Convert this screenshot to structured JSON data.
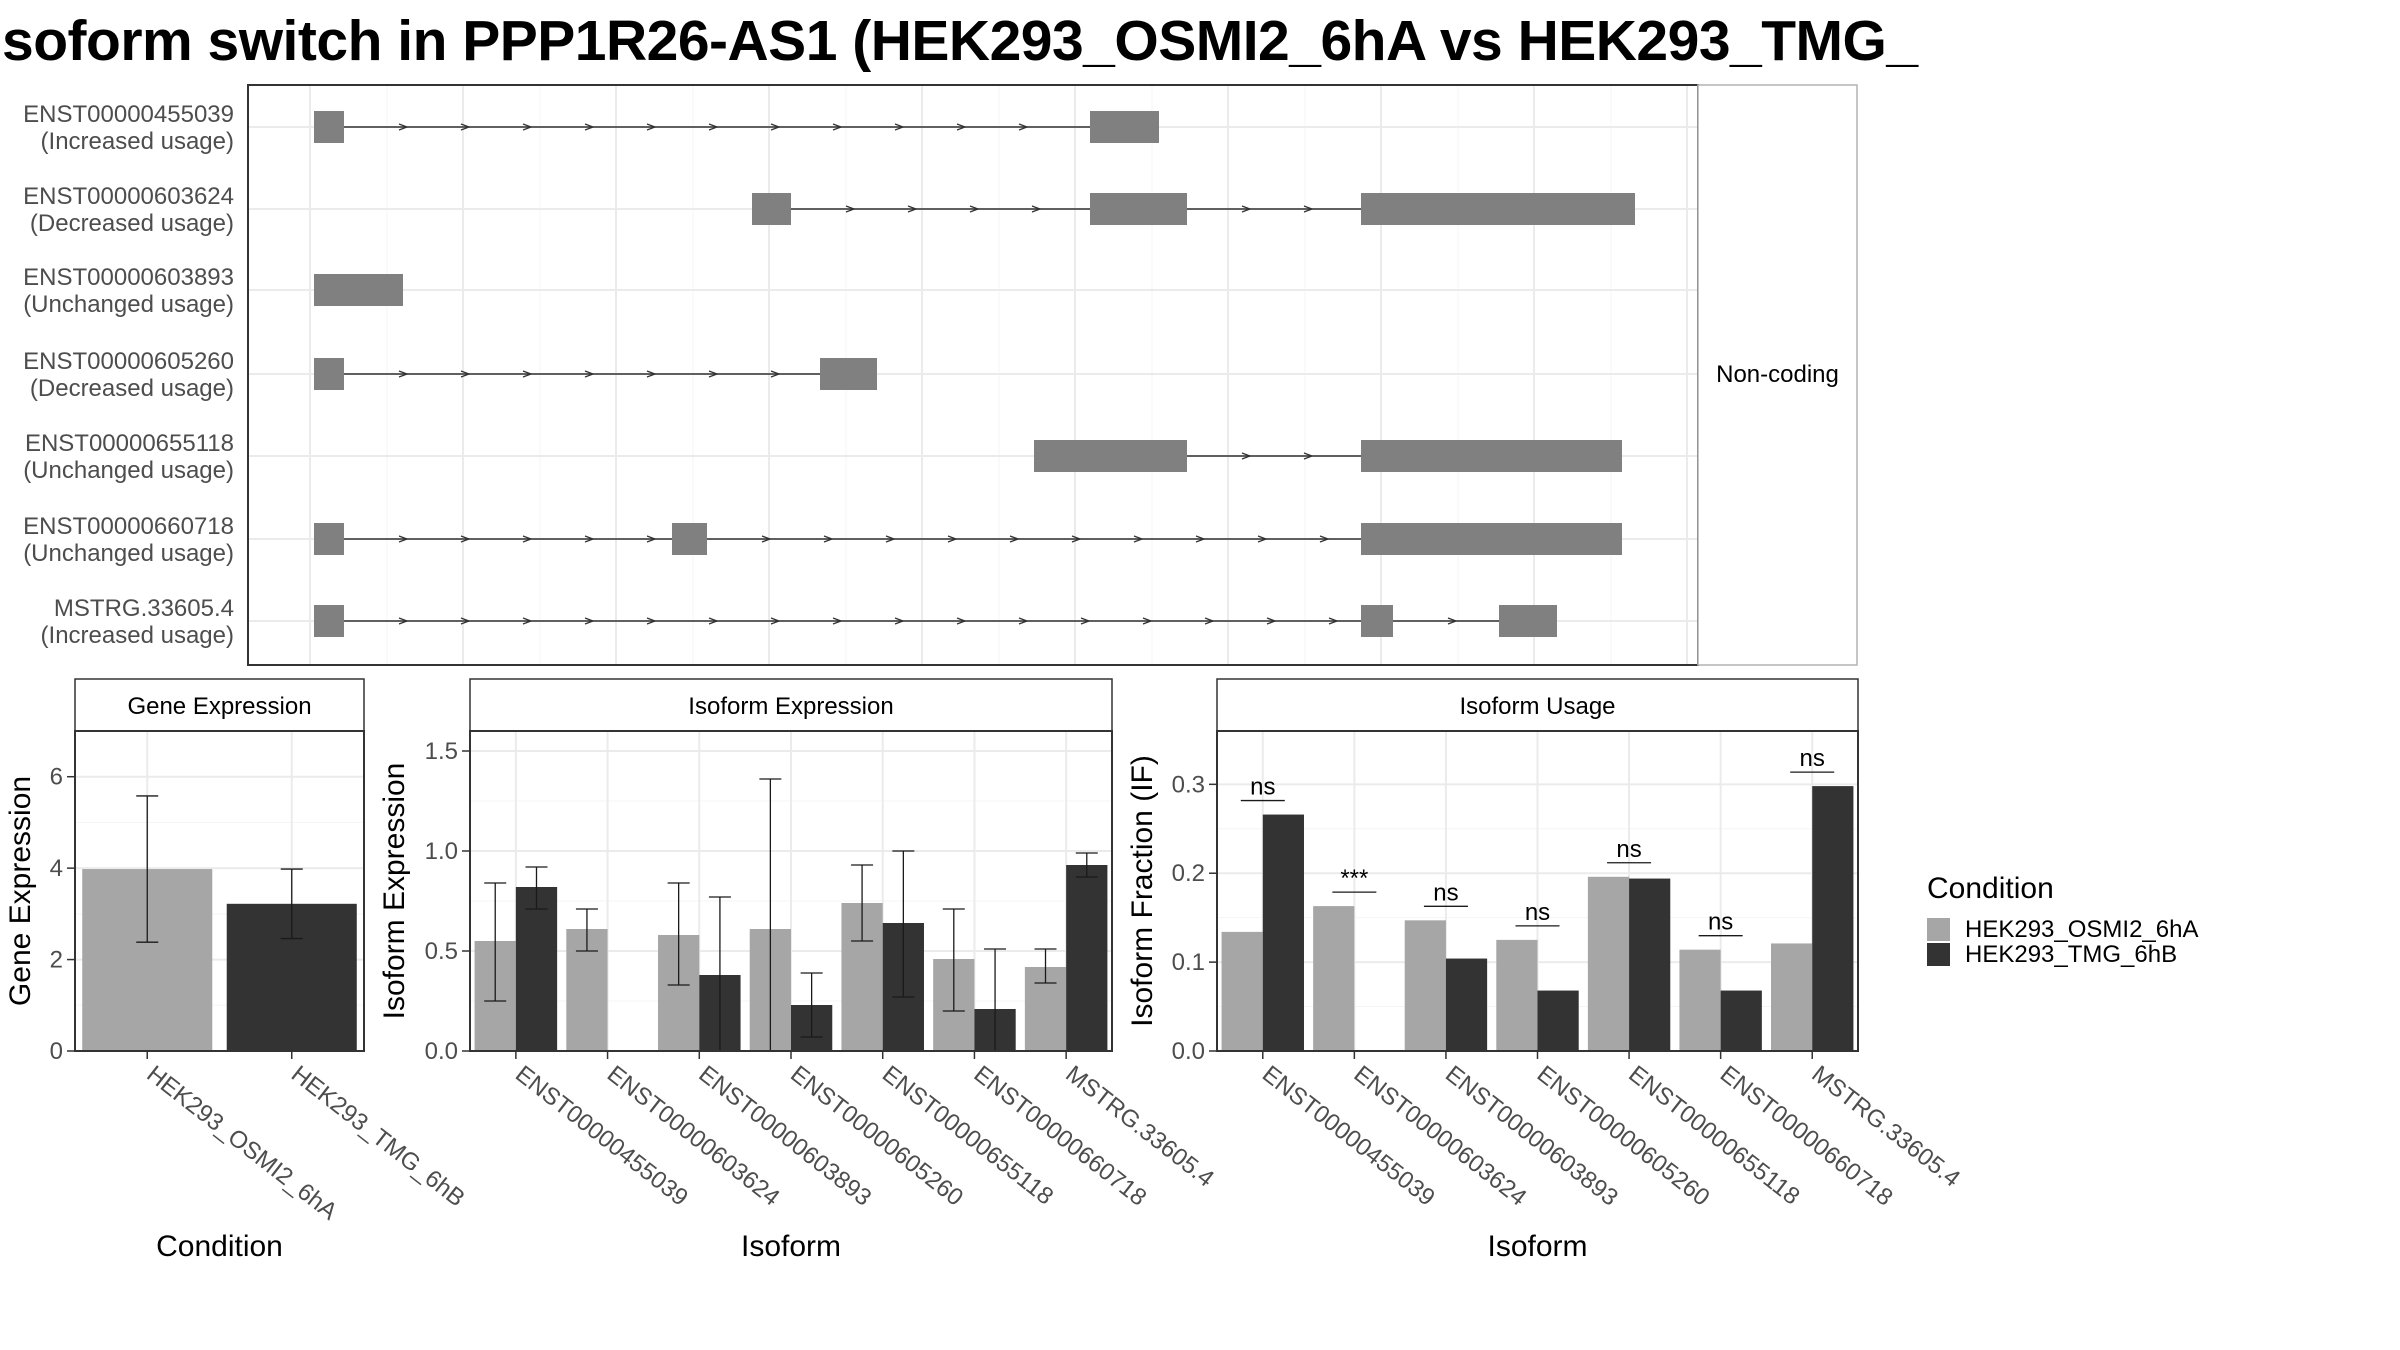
{
  "title": "soform switch in PPP1R26-AS1 (HEK293_OSMI2_6hA vs HEK293_TMG_",
  "colors": {
    "light": "#a6a6a6",
    "dark": "#333333",
    "exon": "#808080",
    "grid": "#ebebeb",
    "border": "#333333",
    "strip": "#d9d9d9"
  },
  "structure": {
    "strip_label": "Non-coding",
    "transcripts": [
      {
        "id": "ENST00000455039",
        "usage": "(Increased usage)"
      },
      {
        "id": "ENST00000603624",
        "usage": "(Decreased usage)"
      },
      {
        "id": "ENST00000603893",
        "usage": "(Unchanged usage)"
      },
      {
        "id": "ENST00000605260",
        "usage": "(Decreased usage)"
      },
      {
        "id": "ENST00000655118",
        "usage": "(Unchanged usage)"
      },
      {
        "id": "ENST00000660718",
        "usage": "(Unchanged usage)"
      },
      {
        "id": "MSTRG.33605.4",
        "usage": "(Increased usage)"
      }
    ]
  },
  "legend": {
    "title": "Condition",
    "items": [
      "HEK293_OSMI2_6hA",
      "HEK293_TMG_6hB"
    ]
  },
  "chart_data": [
    {
      "type": "bar",
      "title": "Gene Expression",
      "xlabel": "Condition",
      "ylabel": "Gene Expression",
      "ylim": [
        0,
        7
      ],
      "yticks": [
        0,
        2,
        4,
        6
      ],
      "categories": [
        "HEK293_OSMI2_6hA",
        "HEK293_TMG_6hB"
      ],
      "values": [
        3.98,
        3.22
      ],
      "errors": [
        [
          2.38,
          5.58
        ],
        [
          2.46,
          3.98
        ]
      ]
    },
    {
      "type": "bar",
      "title": "Isoform Expression",
      "xlabel": "Isoform",
      "ylabel": "Isoform Expression",
      "ylim": [
        0,
        1.6
      ],
      "yticks": [
        "0.0",
        "0.5",
        "1.0",
        "1.5"
      ],
      "categories": [
        "ENST00000455039",
        "ENST00000603624",
        "ENST00000603893",
        "ENST00000605260",
        "ENST00000655118",
        "ENST00000660718",
        "MSTRG.33605.4"
      ],
      "series": [
        {
          "name": "HEK293_OSMI2_6hA",
          "values": [
            0.55,
            0.61,
            0.58,
            0.61,
            0.74,
            0.46,
            0.42
          ],
          "errors": [
            [
              0.25,
              0.84
            ],
            [
              0.5,
              0.71
            ],
            [
              0.33,
              0.84
            ],
            [
              0.0,
              1.36
            ],
            [
              0.55,
              0.93
            ],
            [
              0.2,
              0.71
            ],
            [
              0.34,
              0.51
            ]
          ]
        },
        {
          "name": "HEK293_TMG_6hB",
          "values": [
            0.82,
            0.0,
            0.38,
            0.23,
            0.64,
            0.21,
            0.93
          ],
          "errors": [
            [
              0.71,
              0.92
            ],
            [
              0.0,
              0.0
            ],
            [
              0.0,
              0.77
            ],
            [
              0.07,
              0.39
            ],
            [
              0.27,
              1.0
            ],
            [
              0.0,
              0.51
            ],
            [
              0.87,
              0.99
            ]
          ]
        }
      ]
    },
    {
      "type": "bar",
      "title": "Isoform Usage",
      "xlabel": "Isoform",
      "ylabel": "Isoform Fraction (IF)",
      "ylim": [
        0,
        0.36
      ],
      "yticks": [
        "0.0",
        "0.1",
        "0.2",
        "0.3"
      ],
      "categories": [
        "ENST00000455039",
        "ENST00000603624",
        "ENST00000603893",
        "ENST00000605260",
        "ENST00000655118",
        "ENST00000660718",
        "MSTRG.33605.4"
      ],
      "series": [
        {
          "name": "HEK293_OSMI2_6hA",
          "values": [
            0.134,
            0.163,
            0.147,
            0.125,
            0.196,
            0.114,
            0.121
          ]
        },
        {
          "name": "HEK293_TMG_6hB",
          "values": [
            0.266,
            0.0,
            0.104,
            0.068,
            0.194,
            0.068,
            0.298
          ]
        }
      ],
      "significance": [
        "ns",
        "***",
        "ns",
        "ns",
        "ns",
        "ns",
        "ns"
      ]
    }
  ]
}
